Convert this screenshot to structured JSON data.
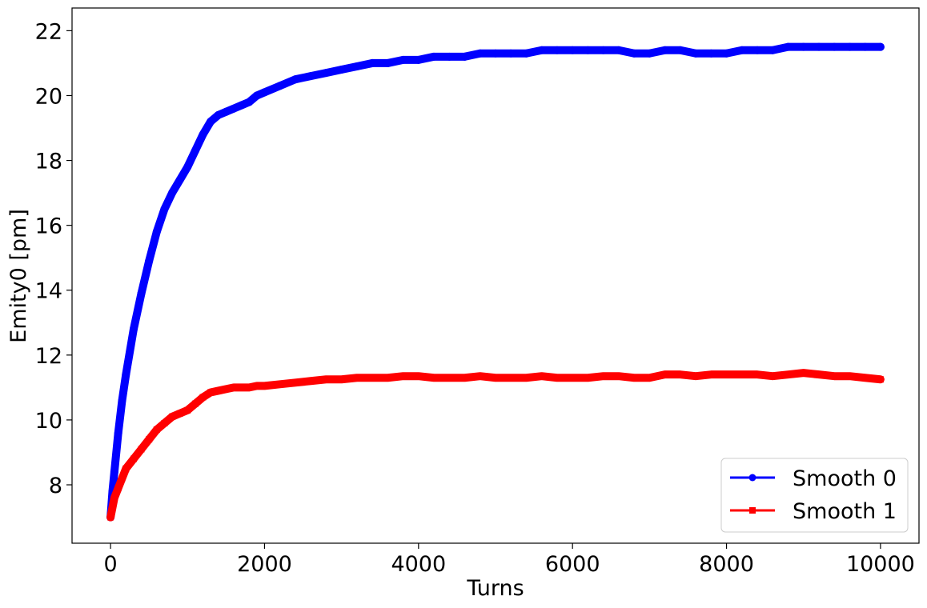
{
  "chart_data": {
    "type": "line",
    "title": "",
    "xlabel": "Turns",
    "ylabel": "Emity0 [pm]",
    "xlim": [
      -500,
      10500
    ],
    "ylim": [
      6.2,
      22.7
    ],
    "xticks": [
      0,
      2000,
      4000,
      6000,
      8000,
      10000
    ],
    "yticks": [
      8,
      10,
      12,
      14,
      16,
      18,
      20,
      22
    ],
    "grid": false,
    "legend_position": "lower right",
    "series": [
      {
        "name": "Smooth 0",
        "color": "#0000ff",
        "marker": "circle",
        "x": [
          0,
          25,
          50,
          100,
          150,
          200,
          300,
          400,
          500,
          600,
          700,
          800,
          900,
          1000,
          1100,
          1200,
          1300,
          1400,
          1500,
          1600,
          1700,
          1800,
          1900,
          2000,
          2200,
          2400,
          2600,
          2800,
          3000,
          3200,
          3400,
          3600,
          3800,
          4000,
          4200,
          4400,
          4600,
          4800,
          5000,
          5200,
          5400,
          5600,
          5800,
          6000,
          6200,
          6400,
          6600,
          6800,
          7000,
          7200,
          7400,
          7600,
          7800,
          8000,
          8200,
          8400,
          8600,
          8800,
          9000,
          9200,
          9400,
          9600,
          9800,
          10000
        ],
        "y": [
          7.0,
          7.8,
          8.4,
          9.6,
          10.6,
          11.4,
          12.8,
          13.9,
          14.9,
          15.8,
          16.5,
          17.0,
          17.4,
          17.8,
          18.3,
          18.8,
          19.2,
          19.4,
          19.5,
          19.6,
          19.7,
          19.8,
          20.0,
          20.1,
          20.3,
          20.5,
          20.6,
          20.7,
          20.8,
          20.9,
          21.0,
          21.0,
          21.1,
          21.1,
          21.2,
          21.2,
          21.2,
          21.3,
          21.3,
          21.3,
          21.3,
          21.4,
          21.4,
          21.4,
          21.4,
          21.4,
          21.4,
          21.3,
          21.3,
          21.4,
          21.4,
          21.3,
          21.3,
          21.3,
          21.4,
          21.4,
          21.4,
          21.5,
          21.5,
          21.5,
          21.5,
          21.5,
          21.5,
          21.5
        ]
      },
      {
        "name": "Smooth 1",
        "color": "#ff0000",
        "marker": "square",
        "x": [
          0,
          25,
          50,
          100,
          150,
          200,
          300,
          400,
          500,
          600,
          700,
          800,
          900,
          1000,
          1100,
          1200,
          1300,
          1400,
          1500,
          1600,
          1700,
          1800,
          1900,
          2000,
          2200,
          2400,
          2600,
          2800,
          3000,
          3200,
          3400,
          3600,
          3800,
          4000,
          4200,
          4400,
          4600,
          4800,
          5000,
          5200,
          5400,
          5600,
          5800,
          6000,
          6200,
          6400,
          6600,
          6800,
          7000,
          7200,
          7400,
          7600,
          7800,
          8000,
          8200,
          8400,
          8600,
          8800,
          9000,
          9200,
          9400,
          9600,
          9800,
          10000
        ],
        "y": [
          7.0,
          7.3,
          7.6,
          7.9,
          8.2,
          8.5,
          8.8,
          9.1,
          9.4,
          9.7,
          9.9,
          10.1,
          10.2,
          10.3,
          10.5,
          10.7,
          10.85,
          10.9,
          10.95,
          11.0,
          11.0,
          11.0,
          11.05,
          11.05,
          11.1,
          11.15,
          11.2,
          11.25,
          11.25,
          11.3,
          11.3,
          11.3,
          11.35,
          11.35,
          11.3,
          11.3,
          11.3,
          11.35,
          11.3,
          11.3,
          11.3,
          11.35,
          11.3,
          11.3,
          11.3,
          11.35,
          11.35,
          11.3,
          11.3,
          11.4,
          11.4,
          11.35,
          11.4,
          11.4,
          11.4,
          11.4,
          11.35,
          11.4,
          11.45,
          11.4,
          11.35,
          11.35,
          11.3,
          11.25
        ]
      }
    ]
  }
}
